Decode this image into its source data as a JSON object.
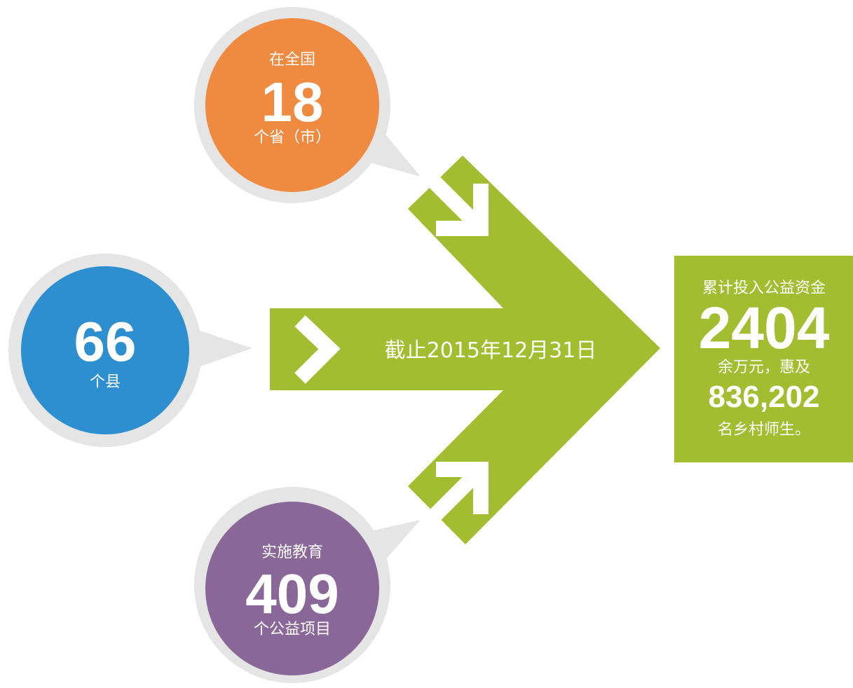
{
  "circles": [
    {
      "prefix": "在全国",
      "number": "18",
      "suffix": "个省（市）"
    },
    {
      "number": "66",
      "suffix": "个县"
    },
    {
      "prefix": "实施教育",
      "number": "409",
      "suffix": "个公益项目"
    }
  ],
  "center_label": "截止2015年12月31日",
  "summary": {
    "line1": "累计投入公益资金",
    "amount": "2404",
    "line2": "余万元，惠及",
    "people": "836,202",
    "line3": "名乡村师生。"
  }
}
